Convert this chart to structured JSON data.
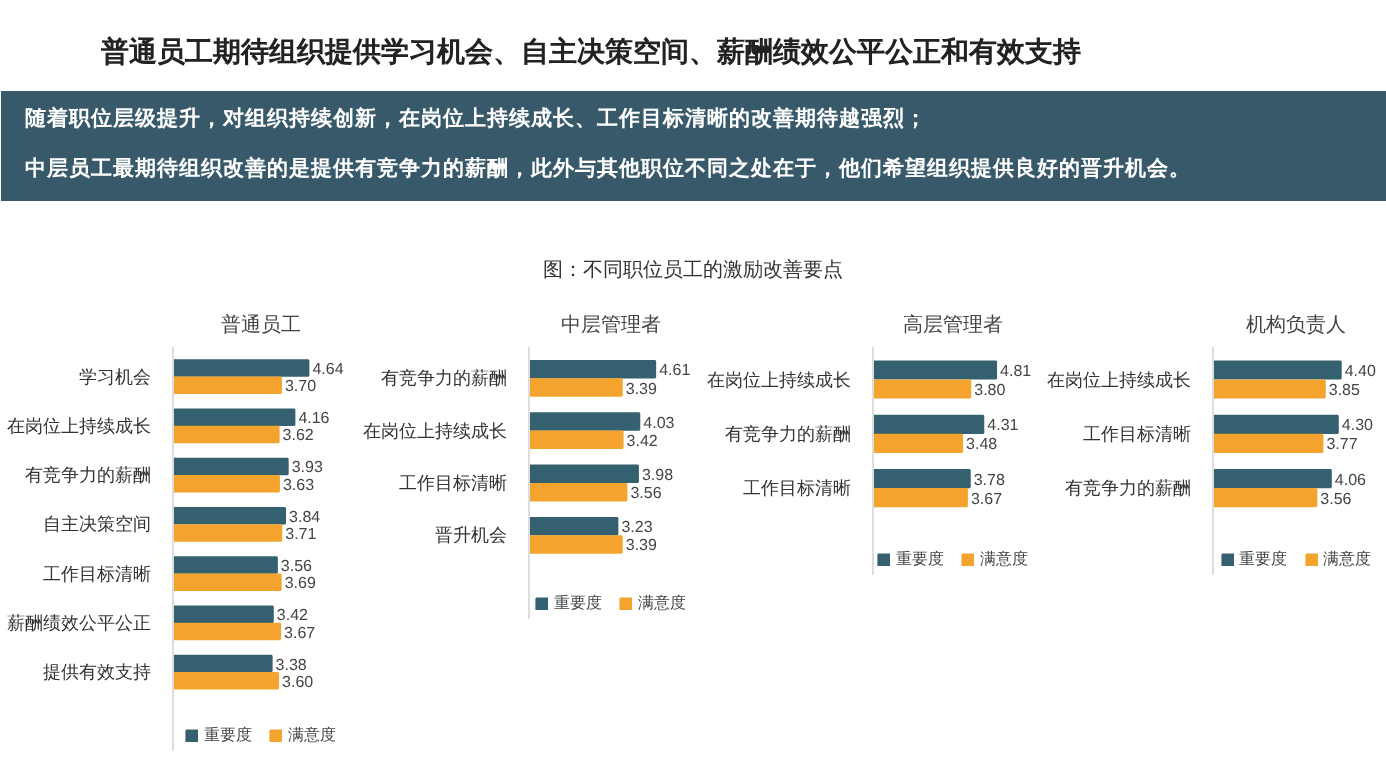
{
  "chart_data": [
    {
      "type": "other",
      "title": "普通员工期待组织提供学习机会、自主决策空间、薪酬绩效公平公正和有效支持",
      "annotations": [
        "随着职位层级提升，对组织持续创新，在岗位上持续成长、工作目标清晰的改善期待越强烈；",
        "中层员工最期待组织改善的是提供有竞争力的薪酬，此外与其他职位不同之处在于，他们希望组织提供良好的晋升机会。",
        "图：不同职位员工的激励改善要点"
      ]
    },
    {
      "type": "bar",
      "orientation": "horizontal",
      "title": "普通员工",
      "legend": "bottom",
      "categories": [
        "学习机会",
        "在岗位上持续成长",
        "有竞争力的薪酬",
        "自主决策空间",
        "工作目标清晰",
        "薪酬绩效公平公正",
        "提供有效支持"
      ],
      "series": [
        {
          "name": "重要度",
          "color": "#35606f",
          "values": [
            4.64,
            4.16,
            3.93,
            3.84,
            3.56,
            3.42,
            3.38
          ],
          "value_labels": [
            "4.64",
            "4.16",
            "3.93",
            "3.84",
            "3.56",
            "3.42",
            "3.38"
          ]
        },
        {
          "name": "满意度",
          "color": "#f4a42e",
          "values": [
            3.7,
            3.62,
            3.63,
            3.71,
            3.69,
            3.67,
            3.6
          ],
          "value_labels": [
            "3.70",
            "3.62",
            "3.63",
            "3.71",
            "3.69",
            "3.67",
            "3.60"
          ]
        }
      ]
    },
    {
      "type": "bar",
      "orientation": "horizontal",
      "title": "中层管理者",
      "legend": "bottom",
      "categories": [
        "有竞争力的薪酬",
        "在岗位上持续成长",
        "工作目标清晰",
        "晋升机会"
      ],
      "series": [
        {
          "name": "重要度",
          "color": "#35606f",
          "values": [
            4.61,
            4.03,
            3.98,
            3.23
          ],
          "value_labels": [
            "4.61",
            "4.03",
            "3.98",
            "3.23"
          ]
        },
        {
          "name": "满意度",
          "color": "#f4a42e",
          "values": [
            3.39,
            3.42,
            3.56,
            3.39
          ],
          "value_labels": [
            "3.39",
            "3.42",
            "3.56",
            "3.39"
          ]
        }
      ]
    },
    {
      "type": "bar",
      "orientation": "horizontal",
      "title": "高层管理者",
      "legend": "bottom",
      "categories": [
        "在岗位上持续成长",
        "有竞争力的薪酬",
        "工作目标清晰"
      ],
      "series": [
        {
          "name": "重要度",
          "color": "#35606f",
          "values": [
            4.81,
            4.31,
            3.78
          ],
          "value_labels": [
            "4.81",
            "4.31",
            "3.78"
          ]
        },
        {
          "name": "满意度",
          "color": "#f4a42e",
          "values": [
            3.8,
            3.48,
            3.67
          ],
          "value_labels": [
            "3.80",
            "3.48",
            "3.67"
          ]
        }
      ]
    },
    {
      "type": "bar",
      "orientation": "horizontal",
      "title": "机构负责人",
      "legend": "bottom",
      "categories": [
        "在岗位上持续成长",
        "工作目标清晰",
        "有竞争力的薪酬"
      ],
      "series": [
        {
          "name": "重要度",
          "color": "#35606f",
          "values": [
            4.4,
            4.3,
            4.06
          ],
          "value_labels": [
            "4.40",
            "4.30",
            "4.06"
          ]
        },
        {
          "name": "满意度",
          "color": "#f4a42e",
          "values": [
            3.85,
            3.77,
            3.56
          ],
          "value_labels": [
            "3.85",
            "3.77",
            "3.56"
          ]
        }
      ]
    }
  ]
}
